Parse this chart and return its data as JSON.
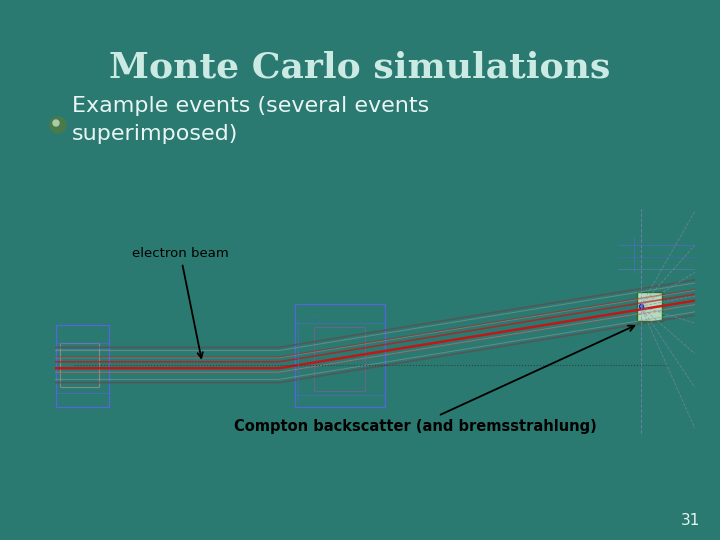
{
  "title": "Monte Carlo simulations",
  "bullet_text": "Example events (several events\nsuperimposed)",
  "annotation1": "electron beam",
  "annotation2": "Compton backscatter (and bremsstrahlung)",
  "slide_number": "31",
  "bg_color": "#2a7a72",
  "title_color": "#cceae4",
  "text_color": "#e8f5f2",
  "panel_bg": "#ffffff",
  "panel_border": "#333333",
  "title_fontsize": 26,
  "bullet_fontsize": 16,
  "annotation_fontsize": 9.5,
  "compton_fontsize": 10.5
}
